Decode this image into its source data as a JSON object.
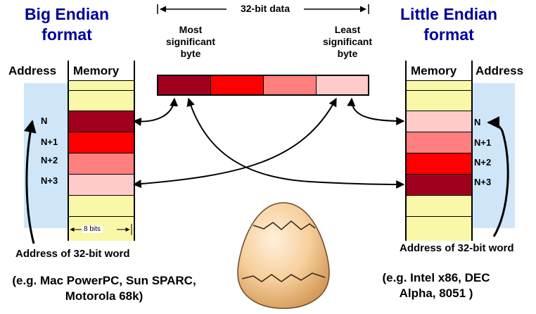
{
  "word": {
    "label": "32-bit data",
    "msb_line1": "Most",
    "msb_line2": "significant",
    "msb_line3": "byte",
    "lsb_line1": "Least",
    "lsb_line2": "significant",
    "lsb_line3": "byte",
    "byte_colors": [
      "#a0001e",
      "#ff0000",
      "#ff7f7f",
      "#ffcaca"
    ]
  },
  "big_endian": {
    "title_line1": "Big Endian",
    "title_line2": "format",
    "address_header": "Address",
    "memory_header": "Memory",
    "addresses": [
      "N",
      "N+1",
      "N+2",
      "N+3"
    ],
    "bits_label": "8 bits",
    "word_address_caption": "Address of 32-bit word",
    "examples_line1": "(e.g. Mac PowerPC, Sun SPARC,",
    "examples_line2": "Motorola 68k)"
  },
  "little_endian": {
    "title_line1": "Little Endian",
    "title_line2": "format",
    "memory_header": "Memory",
    "address_header": "Address",
    "addresses": [
      "N",
      "N+1",
      "N+2",
      "N+3"
    ],
    "word_address_caption": "Address of 32-bit word",
    "examples_line1": "(e.g. Intel x86, DEC",
    "examples_line2": "Alpha, 8051 )"
  },
  "colors": {
    "title": "#000099",
    "memory_empty": "#f8f8a8",
    "address_panel": "#cfe6f8"
  }
}
